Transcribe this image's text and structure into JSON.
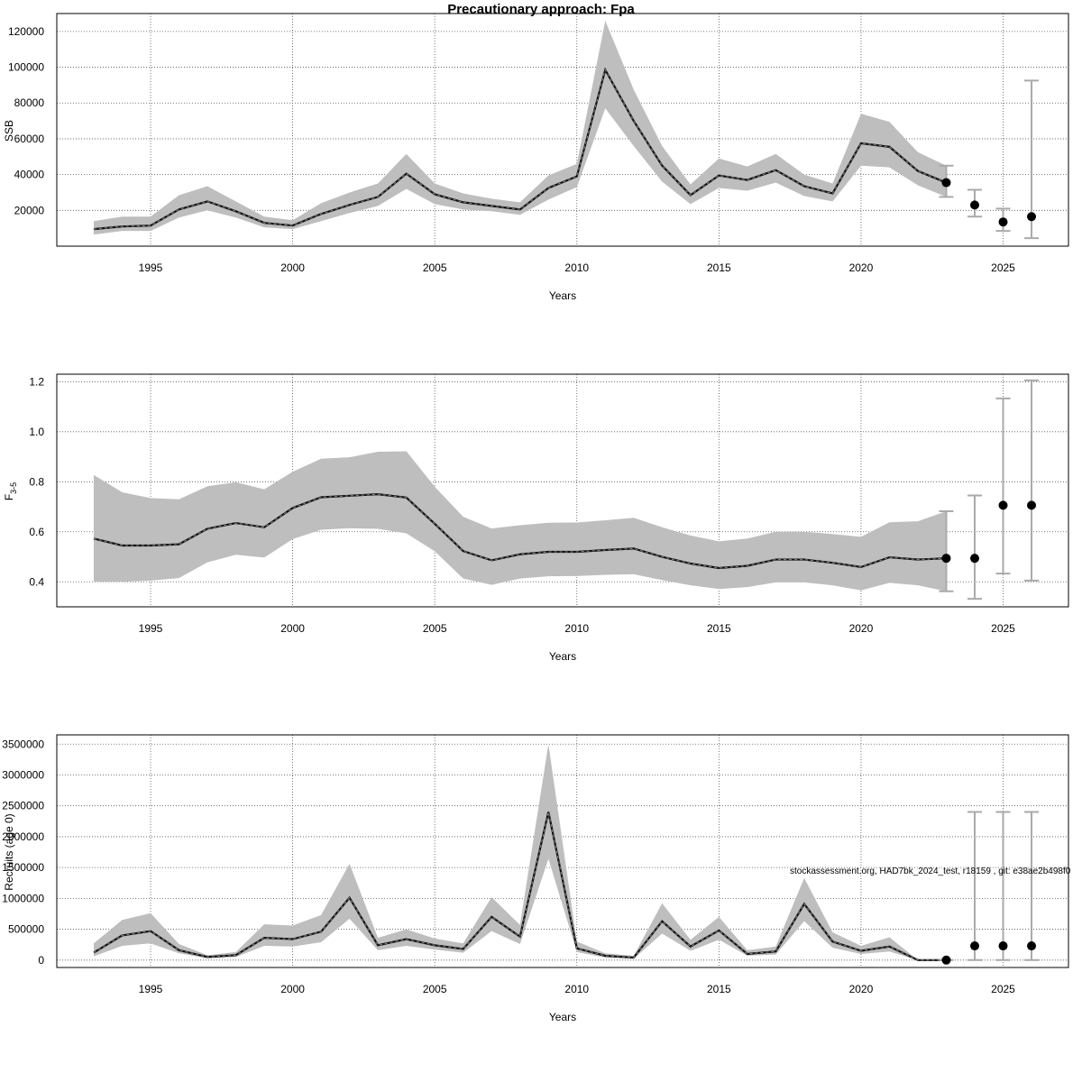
{
  "figure": {
    "title": "Precautionary approach: Fpa",
    "footnote": "stockassessment.org, HAD7bk_2024_test, r18159 , git: e38ae2b498f0"
  },
  "chart_data": [
    {
      "id": "ssb",
      "type": "line",
      "xlabel": "Years",
      "ylabel": "SSB",
      "xlim": [
        1991.7,
        2027.3
      ],
      "ylim": [
        0,
        130000
      ],
      "xticks": [
        1995,
        2000,
        2005,
        2010,
        2015,
        2020,
        2025
      ],
      "yticks": [
        20000,
        40000,
        60000,
        80000,
        100000,
        120000
      ],
      "grid": true,
      "x": [
        1993,
        1994,
        1995,
        1996,
        1997,
        1998,
        1999,
        2000,
        2001,
        2002,
        2003,
        2004,
        2005,
        2006,
        2007,
        2008,
        2009,
        2010,
        2011,
        2012,
        2013,
        2014,
        2015,
        2016,
        2017,
        2018,
        2019,
        2020,
        2021,
        2022,
        2023
      ],
      "estimate": [
        9500,
        11000,
        11500,
        20500,
        25000,
        19500,
        13000,
        11500,
        18000,
        23000,
        27500,
        40500,
        29000,
        24500,
        22500,
        20500,
        32500,
        39000,
        98500,
        70000,
        45000,
        28500,
        39500,
        37000,
        42500,
        33500,
        29500,
        57500,
        55500,
        42000,
        35500
      ],
      "lower": [
        6500,
        8500,
        8500,
        16000,
        20000,
        16000,
        10500,
        9500,
        14000,
        18500,
        22500,
        32000,
        23500,
        20500,
        19500,
        17500,
        26000,
        33000,
        77000,
        56000,
        36000,
        23500,
        32500,
        31000,
        35500,
        28000,
        25000,
        45000,
        44000,
        34000,
        27500
      ],
      "upper": [
        14000,
        16500,
        16500,
        28500,
        33500,
        25000,
        16500,
        14500,
        24000,
        30000,
        35000,
        51500,
        35000,
        29500,
        26500,
        24500,
        39500,
        46000,
        126000,
        87500,
        56000,
        34500,
        49000,
        44500,
        51500,
        40000,
        35000,
        74000,
        69500,
        52500,
        45000
      ],
      "forecast": {
        "x": [
          2024,
          2025,
          2026
        ],
        "value": [
          23000,
          13500,
          16500
        ],
        "lower": [
          16500,
          8500,
          4500
        ],
        "upper": [
          31500,
          21000,
          92500
        ]
      },
      "last_year_interval": [
        27500,
        45000
      ]
    },
    {
      "id": "fbar",
      "type": "line",
      "xlabel": "Years",
      "ylabel": "F",
      "ylabel_sub": "3-5",
      "xlim": [
        1991.7,
        2027.3
      ],
      "ylim": [
        0.3,
        1.23
      ],
      "xticks": [
        1995,
        2000,
        2005,
        2010,
        2015,
        2020,
        2025
      ],
      "yticks": [
        "0.4",
        "0.6",
        "0.8",
        "1.0",
        "1.2"
      ],
      "grid": true,
      "x": [
        1993,
        1994,
        1995,
        1996,
        1997,
        1998,
        1999,
        2000,
        2001,
        2002,
        2003,
        2004,
        2005,
        2006,
        2007,
        2008,
        2009,
        2010,
        2011,
        2012,
        2013,
        2014,
        2015,
        2016,
        2017,
        2018,
        2019,
        2020,
        2021,
        2022,
        2023
      ],
      "estimate": [
        0.573,
        0.545,
        0.545,
        0.55,
        0.612,
        0.635,
        0.618,
        0.695,
        0.738,
        0.744,
        0.75,
        0.737,
        0.632,
        0.523,
        0.486,
        0.51,
        0.52,
        0.52,
        0.527,
        0.533,
        0.5,
        0.473,
        0.455,
        0.464,
        0.489,
        0.489,
        0.476,
        0.459,
        0.498,
        0.489,
        0.494
      ],
      "lower": [
        0.4,
        0.4,
        0.405,
        0.415,
        0.478,
        0.508,
        0.497,
        0.571,
        0.608,
        0.614,
        0.612,
        0.594,
        0.522,
        0.413,
        0.388,
        0.413,
        0.422,
        0.423,
        0.428,
        0.43,
        0.407,
        0.386,
        0.371,
        0.379,
        0.398,
        0.398,
        0.386,
        0.366,
        0.396,
        0.386,
        0.362
      ],
      "upper": [
        0.827,
        0.758,
        0.735,
        0.73,
        0.782,
        0.798,
        0.77,
        0.84,
        0.892,
        0.898,
        0.92,
        0.922,
        0.78,
        0.66,
        0.613,
        0.626,
        0.636,
        0.637,
        0.646,
        0.656,
        0.618,
        0.585,
        0.562,
        0.573,
        0.6,
        0.6,
        0.591,
        0.58,
        0.638,
        0.642,
        0.682
      ],
      "forecast": {
        "x": [
          2024,
          2025,
          2026
        ],
        "value": [
          0.494,
          0.706,
          0.706
        ],
        "lower": [
          0.332,
          0.433,
          0.405
        ],
        "upper": [
          0.745,
          1.133,
          1.205
        ]
      },
      "last_year_interval": [
        0.362,
        0.682
      ]
    },
    {
      "id": "recruits",
      "type": "line",
      "xlabel": "Years",
      "ylabel": "Recruits (age 0)",
      "xlim": [
        1991.7,
        2027.3
      ],
      "ylim": [
        -120000,
        3650000
      ],
      "xticks": [
        1995,
        2000,
        2005,
        2010,
        2015,
        2020,
        2025
      ],
      "yticks": [
        0,
        500000,
        1000000,
        1500000,
        2000000,
        2500000,
        3000000,
        3500000
      ],
      "grid": true,
      "x": [
        1993,
        1994,
        1995,
        1996,
        1997,
        1998,
        1999,
        2000,
        2001,
        2002,
        2003,
        2004,
        2005,
        2006,
        2007,
        2008,
        2009,
        2010,
        2011,
        2012,
        2013,
        2014,
        2015,
        2016,
        2017,
        2018,
        2019,
        2020,
        2021,
        2022,
        2023
      ],
      "estimate": [
        120000,
        400000,
        470000,
        160000,
        50000,
        80000,
        360000,
        340000,
        460000,
        1010000,
        240000,
        340000,
        240000,
        180000,
        700000,
        380000,
        2400000,
        190000,
        70000,
        40000,
        630000,
        220000,
        480000,
        100000,
        140000,
        910000,
        300000,
        150000,
        220000,
        0,
        0
      ],
      "lower": [
        60000,
        230000,
        270000,
        110000,
        30000,
        50000,
        230000,
        220000,
        290000,
        670000,
        160000,
        230000,
        170000,
        120000,
        470000,
        260000,
        1640000,
        130000,
        40000,
        20000,
        430000,
        150000,
        330000,
        70000,
        90000,
        630000,
        200000,
        100000,
        140000,
        0,
        0
      ],
      "upper": [
        270000,
        650000,
        760000,
        260000,
        80000,
        130000,
        580000,
        560000,
        730000,
        1560000,
        360000,
        500000,
        350000,
        270000,
        1020000,
        570000,
        3500000,
        300000,
        110000,
        70000,
        920000,
        330000,
        700000,
        160000,
        220000,
        1330000,
        450000,
        230000,
        370000,
        0,
        0
      ],
      "forecast": {
        "x": [
          2024,
          2025,
          2026
        ],
        "value": [
          230000,
          230000,
          230000
        ],
        "lower": [
          0,
          0,
          0
        ],
        "upper": [
          2400000,
          2400000,
          2400000
        ]
      },
      "last_year_interval": [
        0,
        0
      ]
    }
  ]
}
